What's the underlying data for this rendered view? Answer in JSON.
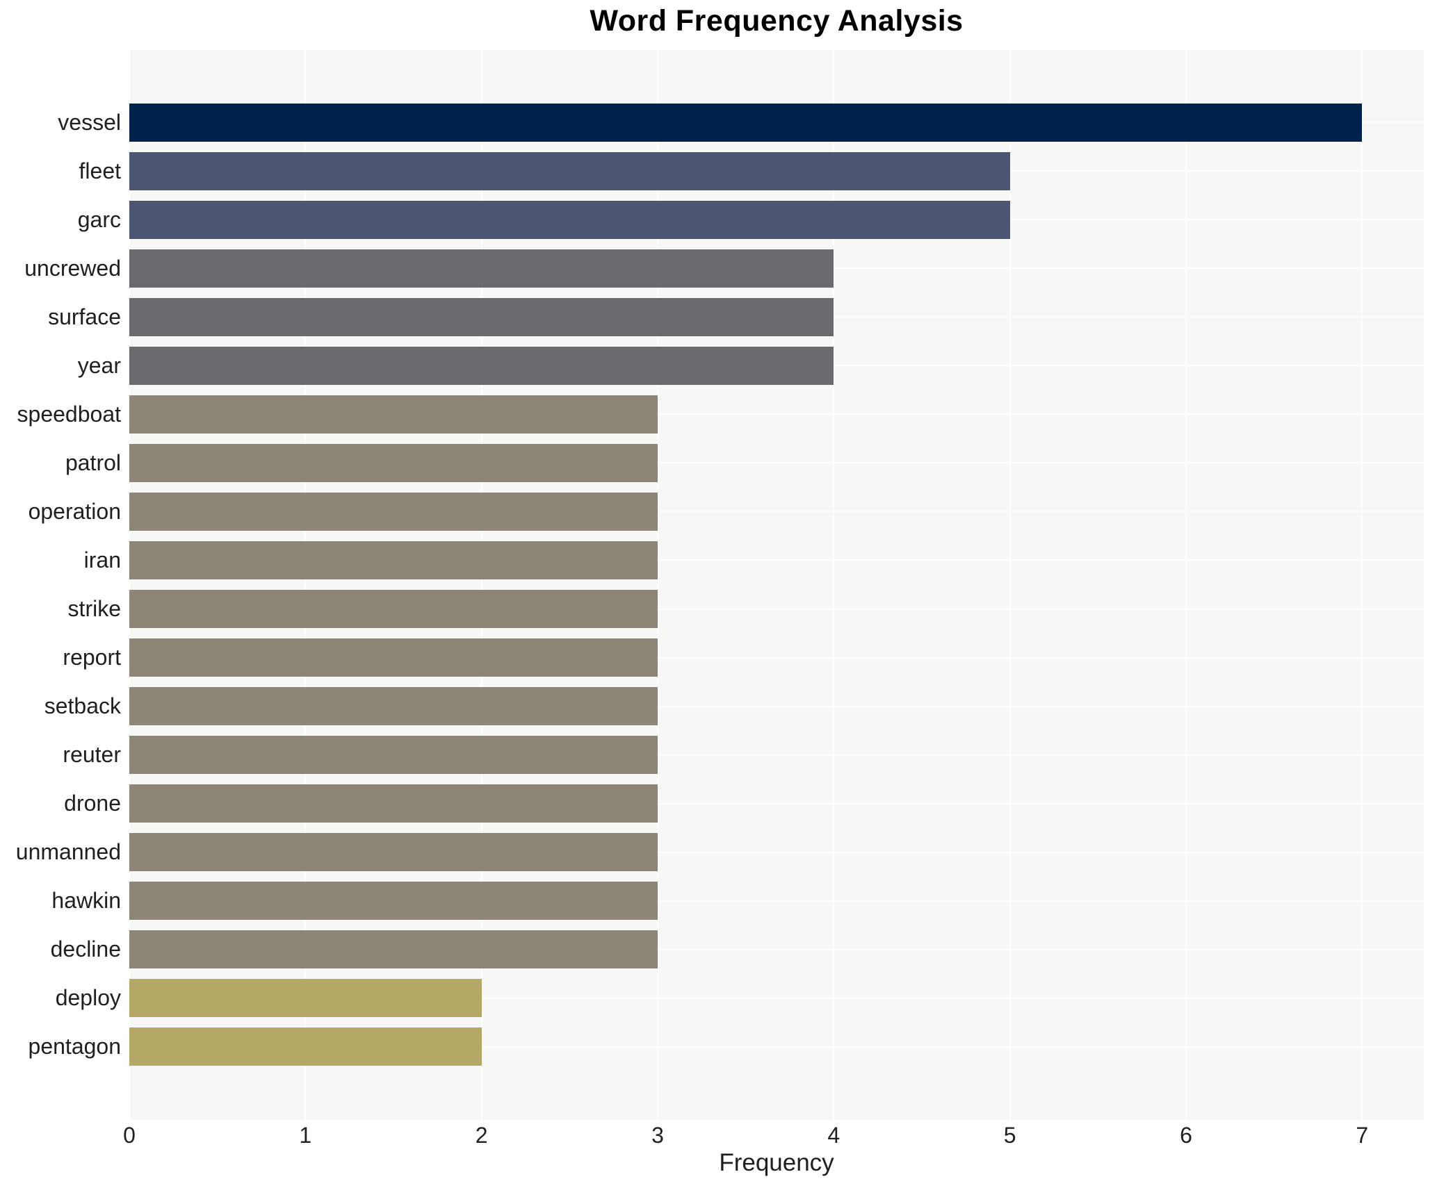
{
  "title": "Word Frequency Analysis",
  "chart_data": {
    "type": "bar",
    "orientation": "horizontal",
    "title": "Word Frequency Analysis",
    "xlabel": "Frequency",
    "ylabel": "",
    "categories": [
      "vessel",
      "fleet",
      "garc",
      "uncrewed",
      "surface",
      "year",
      "speedboat",
      "patrol",
      "operation",
      "iran",
      "strike",
      "report",
      "setback",
      "reuter",
      "drone",
      "unmanned",
      "hawkin",
      "decline",
      "deploy",
      "pentagon"
    ],
    "values": [
      7,
      5,
      5,
      4,
      4,
      4,
      3,
      3,
      3,
      3,
      3,
      3,
      3,
      3,
      3,
      3,
      3,
      3,
      2,
      2
    ],
    "bar_colors": [
      "#01224d",
      "#4c5571",
      "#4c5571",
      "#6a6a6e",
      "#6a6a6e",
      "#6a6a6e",
      "#8d8677",
      "#8d8677",
      "#8d8677",
      "#8d8677",
      "#8d8677",
      "#8d8677",
      "#8d8677",
      "#8d8677",
      "#8d8677",
      "#8d8677",
      "#8d8677",
      "#8d8677",
      "#b3a865",
      "#b3a865"
    ],
    "value_by_word": {
      "vessel": 7,
      "fleet": 5,
      "garc": 5,
      "uncrewed": 4,
      "surface": 4,
      "year": 4,
      "speedboat": 3,
      "patrol": 3,
      "operation": 3,
      "iran": 3,
      "strike": 3,
      "report": 3,
      "setback": 3,
      "reuter": 3,
      "drone": 3,
      "unmanned": 3,
      "hawkin": 3,
      "decline": 3,
      "deploy": 2,
      "pentagon": 2
    },
    "xlim": [
      0,
      7.35
    ],
    "xticks": [
      0,
      1,
      2,
      3,
      4,
      5,
      6,
      7
    ],
    "grid": "on",
    "legend": "none",
    "colors": {
      "page_bg": "#ffffff",
      "plot_bg": "#f7f7f5",
      "grid": "#ffffff",
      "text": "#1f1f1f",
      "title": "#000000"
    }
  }
}
